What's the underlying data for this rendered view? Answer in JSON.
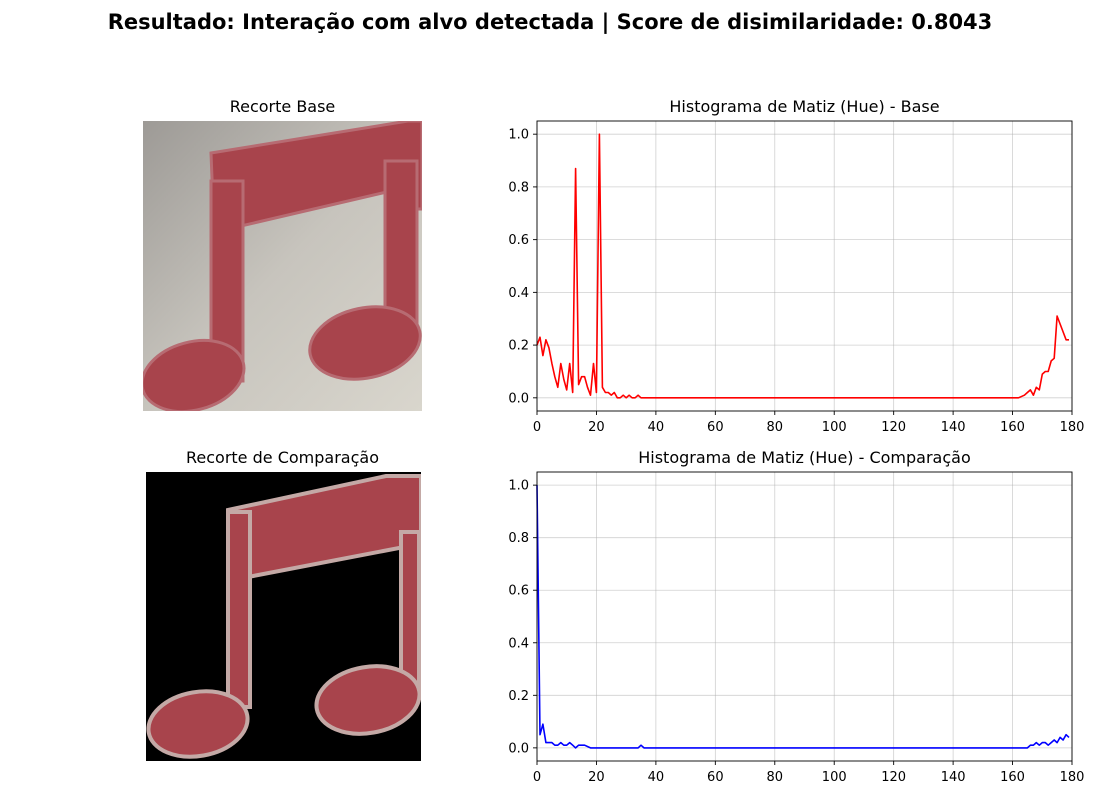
{
  "figure": {
    "suptitle": "Resultado: Interação com alvo detectada | Score de disimilaridade: 0.8043"
  },
  "panels": {
    "base_image": {
      "title": "Recorte Base",
      "background": "light-gray",
      "shape": "music-note-icon",
      "note_color": "#a8444c"
    },
    "comparison_image": {
      "title": "Recorte de Comparação",
      "background": "black",
      "shape": "music-note-icon",
      "note_color": "#a8444c"
    }
  },
  "chart_data": [
    {
      "type": "line",
      "title": "Histograma de Matiz (Hue) - Base",
      "xlabel": "",
      "ylabel": "",
      "xlim": [
        0,
        180
      ],
      "ylim": [
        -0.05,
        1.05
      ],
      "xticks": [
        0,
        20,
        40,
        60,
        80,
        100,
        120,
        140,
        160,
        180
      ],
      "yticks": [
        0.0,
        0.2,
        0.4,
        0.6,
        0.8,
        1.0
      ],
      "grid": true,
      "color": "#ff0000",
      "series": [
        {
          "x": [
            0,
            1,
            2,
            3,
            4,
            5,
            6,
            7,
            8,
            9,
            10,
            11,
            12,
            13,
            14,
            15,
            16,
            17,
            18,
            19,
            20,
            21,
            22,
            23,
            24,
            25,
            26,
            27,
            28,
            29,
            30,
            31,
            32,
            33,
            34,
            35,
            36,
            37,
            38,
            39,
            40,
            50,
            60,
            80,
            100,
            120,
            140,
            160,
            162,
            164,
            165,
            166,
            167,
            168,
            169,
            170,
            171,
            172,
            173,
            174,
            175,
            176,
            177,
            178,
            179
          ],
          "y": [
            0.2,
            0.23,
            0.16,
            0.22,
            0.19,
            0.13,
            0.08,
            0.04,
            0.13,
            0.07,
            0.03,
            0.13,
            0.02,
            0.87,
            0.05,
            0.08,
            0.08,
            0.04,
            0.01,
            0.13,
            0.02,
            1.0,
            0.04,
            0.02,
            0.02,
            0.01,
            0.02,
            0.0,
            0.0,
            0.01,
            0.0,
            0.01,
            0.0,
            0.0,
            0.01,
            0.0,
            0.0,
            0.0,
            0.0,
            0.0,
            0.0,
            0.0,
            0.0,
            0.0,
            0.0,
            0.0,
            0.0,
            0.0,
            0.0,
            0.01,
            0.02,
            0.03,
            0.01,
            0.04,
            0.03,
            0.09,
            0.1,
            0.1,
            0.14,
            0.15,
            0.31,
            0.28,
            0.25,
            0.22,
            0.22
          ]
        }
      ]
    },
    {
      "type": "line",
      "title": "Histograma de Matiz (Hue) - Comparação",
      "xlabel": "",
      "ylabel": "",
      "xlim": [
        0,
        180
      ],
      "ylim": [
        -0.05,
        1.05
      ],
      "xticks": [
        0,
        20,
        40,
        60,
        80,
        100,
        120,
        140,
        160,
        180
      ],
      "yticks": [
        0.0,
        0.2,
        0.4,
        0.6,
        0.8,
        1.0
      ],
      "grid": true,
      "color": "#0000ff",
      "series": [
        {
          "x": [
            0,
            1,
            2,
            3,
            4,
            5,
            6,
            7,
            8,
            9,
            10,
            11,
            12,
            13,
            14,
            15,
            16,
            18,
            20,
            25,
            30,
            34,
            35,
            36,
            40,
            60,
            100,
            140,
            160,
            165,
            166,
            167,
            168,
            169,
            170,
            171,
            172,
            173,
            174,
            175,
            176,
            177,
            178,
            179
          ],
          "y": [
            1.0,
            0.05,
            0.09,
            0.02,
            0.02,
            0.02,
            0.01,
            0.01,
            0.02,
            0.01,
            0.01,
            0.02,
            0.01,
            0.0,
            0.01,
            0.01,
            0.01,
            0.0,
            0.0,
            0.0,
            0.0,
            0.0,
            0.01,
            0.0,
            0.0,
            0.0,
            0.0,
            0.0,
            0.0,
            0.0,
            0.01,
            0.01,
            0.02,
            0.01,
            0.02,
            0.02,
            0.01,
            0.02,
            0.03,
            0.02,
            0.04,
            0.03,
            0.05,
            0.04
          ]
        }
      ]
    }
  ]
}
